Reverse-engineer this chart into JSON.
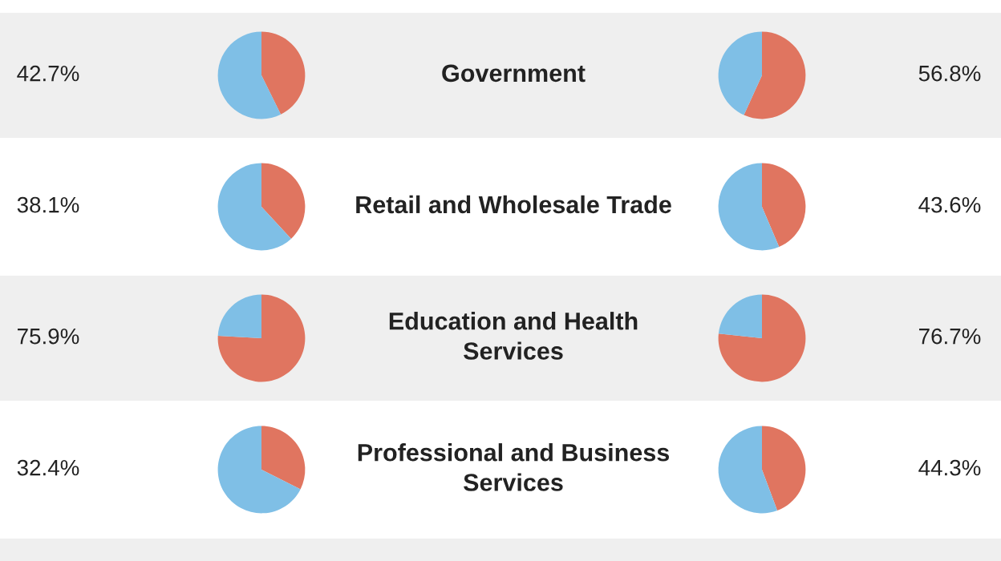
{
  "chart_data": [
    {
      "type": "pie",
      "title": "Government",
      "categories": [
        null,
        null
      ],
      "values": [
        42.7,
        57.3
      ],
      "colors": [
        "#e07560",
        "#7fbfe6"
      ],
      "annotations": [
        "42.7%"
      ]
    },
    {
      "type": "pie",
      "categories": [
        null,
        null
      ],
      "values": [
        56.8,
        43.2
      ],
      "colors": [
        "#e07560",
        "#7fbfe6"
      ],
      "annotations": [
        "56.8%"
      ]
    },
    {
      "type": "pie",
      "title": "Retail and Wholesale Trade",
      "categories": [
        null,
        null
      ],
      "values": [
        38.1,
        61.9
      ],
      "colors": [
        "#e07560",
        "#7fbfe6"
      ],
      "annotations": [
        "38.1%"
      ]
    },
    {
      "type": "pie",
      "categories": [
        null,
        null
      ],
      "values": [
        43.6,
        56.4
      ],
      "colors": [
        "#e07560",
        "#7fbfe6"
      ],
      "annotations": [
        "43.6%"
      ]
    },
    {
      "type": "pie",
      "title": "Education and Health\nServices",
      "categories": [
        null,
        null
      ],
      "values": [
        75.9,
        24.1
      ],
      "colors": [
        "#e07560",
        "#7fbfe6"
      ],
      "annotations": [
        "75.9%"
      ]
    },
    {
      "type": "pie",
      "categories": [
        null,
        null
      ],
      "values": [
        76.7,
        23.3
      ],
      "colors": [
        "#e07560",
        "#7fbfe6"
      ],
      "annotations": [
        "76.7%"
      ]
    },
    {
      "type": "pie",
      "title": "Professional and Business\nServices",
      "categories": [
        null,
        null
      ],
      "values": [
        32.4,
        67.6
      ],
      "colors": [
        "#e07560",
        "#7fbfe6"
      ],
      "annotations": [
        "32.4%"
      ]
    },
    {
      "type": "pie",
      "categories": [
        null,
        null
      ],
      "values": [
        44.3,
        55.7
      ],
      "colors": [
        "#e07560",
        "#7fbfe6"
      ],
      "annotations": [
        "44.3%"
      ]
    }
  ]
}
